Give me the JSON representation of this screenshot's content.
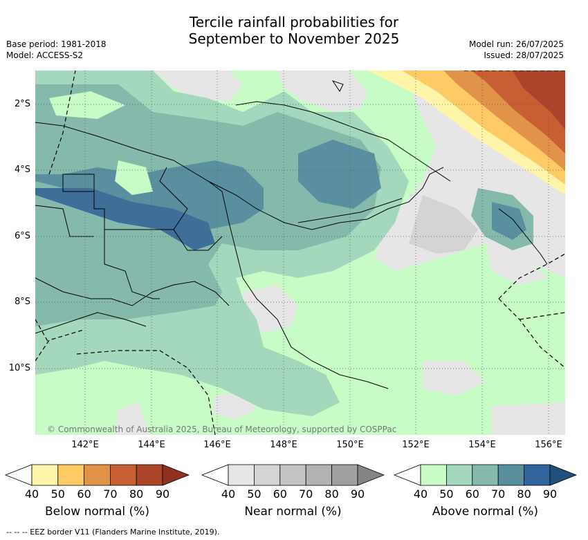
{
  "title_line1": "Tercile rainfall probabilities for",
  "title_line2": "September to November 2025",
  "meta_left": [
    "Base period: 1981-2018",
    "Model: ACCESS-S2"
  ],
  "meta_right": [
    "Model run: 26/07/2025",
    "Issued: 28/07/2025"
  ],
  "lat_labels": [
    "2°S",
    "4°S",
    "6°S",
    "8°S",
    "10°S"
  ],
  "lon_labels": [
    "142°E",
    "144°E",
    "146°E",
    "148°E",
    "150°E",
    "152°E",
    "154°E",
    "156°E"
  ],
  "copyright": "© Commonwealth of Australia 2025, Bureau of Meteorology, supported by COSPPac",
  "footnote": "--  --  -- EEZ border V11 (Flanders Marine Institute, 2019).",
  "colorbars": [
    {
      "label": "Below normal (%)",
      "ticks": [
        "40",
        "50",
        "60",
        "70",
        "80",
        "90"
      ],
      "colors": [
        "#fff5a8",
        "#fdca65",
        "#e2934a",
        "#c85f33",
        "#ab4429",
        "#8f3020"
      ]
    },
    {
      "label": "Near normal (%)",
      "ticks": [
        "40",
        "50",
        "60",
        "70",
        "80",
        "90"
      ],
      "colors": [
        "#e6e6e6",
        "#d4d4d4",
        "#c4c4c4",
        "#b2b2b2",
        "#a0a0a0",
        "#858585"
      ]
    },
    {
      "label": "Above normal (%)",
      "ticks": [
        "40",
        "50",
        "60",
        "70",
        "80",
        "90"
      ],
      "colors": [
        "#c7fcc6",
        "#a3d8bc",
        "#84b9ab",
        "#5a8fa0",
        "#31649a",
        "#21507f"
      ]
    }
  ],
  "colors": {
    "below_40": "#fff5a8",
    "below_50": "#fdca65",
    "below_60": "#e2934a",
    "below_70": "#c85f33",
    "below_80": "#ab4429",
    "near_40": "#e6e6e6",
    "near_50": "#d4d4d4",
    "above_40": "#c7fcc6",
    "above_50": "#a3d8bc",
    "above_60": "#84b9ab",
    "above_70": "#5a8fa0",
    "above_80": "#3f6f99"
  }
}
